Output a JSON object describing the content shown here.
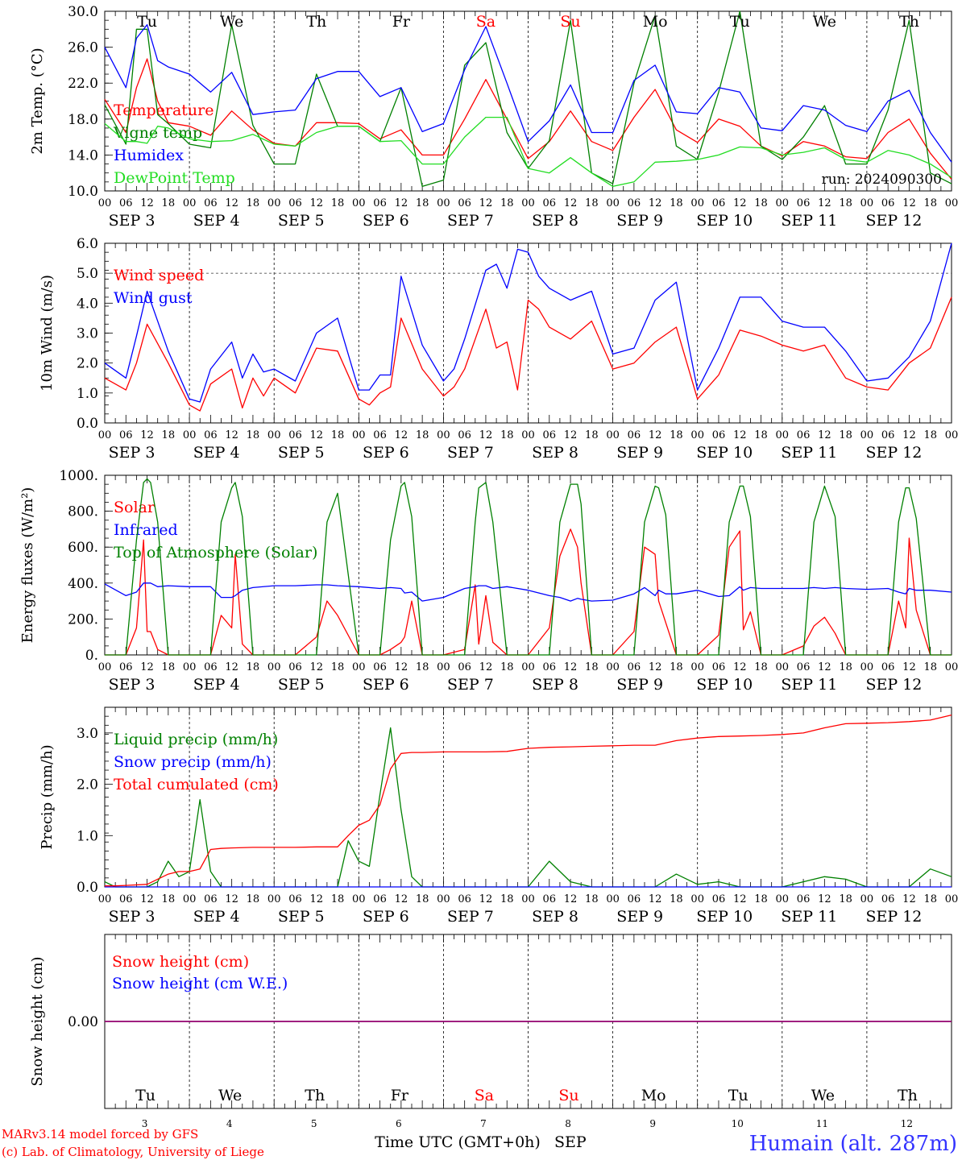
{
  "run_label": "run: 2024090300",
  "footer": {
    "model": "MARv3.14 model forced by GFS",
    "copyright": "(c) Lab. of Climatology, University of Liege",
    "time_axis": "Time UTC (GMT+0h)",
    "month": "SEP",
    "station": "Humain (alt. 287m)"
  },
  "days": [
    {
      "dow": "Tu",
      "date": "SEP  3",
      "num": "3",
      "weekend": false
    },
    {
      "dow": "We",
      "date": "SEP  4",
      "num": "4",
      "weekend": false
    },
    {
      "dow": "Th",
      "date": "SEP  5",
      "num": "5",
      "weekend": false
    },
    {
      "dow": "Fr",
      "date": "SEP  6",
      "num": "6",
      "weekend": false
    },
    {
      "dow": "Sa",
      "date": "SEP  7",
      "num": "7",
      "weekend": true
    },
    {
      "dow": "Su",
      "date": "SEP  8",
      "num": "8",
      "weekend": true
    },
    {
      "dow": "Mo",
      "date": "SEP  9",
      "num": "9",
      "weekend": false
    },
    {
      "dow": "Tu",
      "date": "SEP 10",
      "num": "10",
      "weekend": false
    },
    {
      "dow": "We",
      "date": "SEP 11",
      "num": "11",
      "weekend": false
    },
    {
      "dow": "Th",
      "date": "SEP 12",
      "num": "12",
      "weekend": false
    }
  ],
  "hour_ticks": [
    "00",
    "06",
    "12",
    "18"
  ],
  "colors": {
    "red": "#ff0000",
    "green": "#008000",
    "blue": "#0000ff",
    "lightgreen": "#22dd22",
    "purple": "#800080",
    "station": "#3333ff"
  },
  "chart_data": [
    {
      "type": "line",
      "ylabel": "2m Temp. (°C)",
      "ylim": [
        10,
        30
      ],
      "yticks": [
        "10.0",
        "14.0",
        "18.0",
        "22.0",
        "26.0",
        "30.0"
      ],
      "x_hours": [
        0,
        6,
        9,
        12,
        15,
        18,
        24,
        30,
        36,
        42,
        48,
        54,
        60,
        66,
        72,
        78,
        84,
        90,
        96,
        102,
        108,
        114,
        120,
        126,
        132,
        138,
        144,
        150,
        156,
        162,
        168,
        174,
        180,
        186,
        192,
        198,
        204,
        210,
        216,
        222,
        228,
        234,
        240
      ],
      "series": [
        {
          "name": "Temperature",
          "color": "red",
          "values": [
            20.2,
            16.5,
            21.5,
            24.7,
            20.0,
            17.6,
            17.2,
            16.2,
            18.9,
            16.8,
            15.3,
            15.0,
            17.6,
            17.6,
            17.5,
            15.8,
            16.8,
            14.0,
            14.0,
            18.0,
            22.4,
            18.0,
            13.6,
            15.5,
            18.9,
            15.5,
            14.5,
            18.2,
            21.3,
            16.8,
            15.4,
            18.0,
            17.2,
            15.0,
            13.9,
            15.5,
            15.0,
            13.8,
            13.6,
            16.5,
            18.0,
            14.2,
            11.3
          ]
        },
        {
          "name": "Vigne temp",
          "color": "green",
          "values": [
            19.6,
            15.2,
            28.0,
            28.0,
            18.5,
            17.5,
            15.2,
            14.8,
            28.5,
            17.3,
            13.0,
            13.0,
            23.0,
            17.2,
            17.2,
            15.5,
            21.5,
            10.5,
            11.2,
            24.0,
            26.5,
            16.5,
            12.5,
            15.6,
            29.0,
            12.0,
            10.8,
            22.0,
            29.5,
            15.0,
            13.5,
            21.0,
            30.0,
            15.0,
            13.5,
            16.0,
            19.5,
            13.0,
            13.0,
            19.0,
            29.0,
            12.0,
            10.8
          ]
        },
        {
          "name": "Humidex",
          "color": "blue",
          "values": [
            26.0,
            21.5,
            27.0,
            28.5,
            24.5,
            23.8,
            23.0,
            21.0,
            23.2,
            18.5,
            18.8,
            19.0,
            22.5,
            23.3,
            23.3,
            20.5,
            21.5,
            16.6,
            17.5,
            23.5,
            28.3,
            22.0,
            15.5,
            17.8,
            21.8,
            16.5,
            16.5,
            22.3,
            24.0,
            18.8,
            18.6,
            21.5,
            21.0,
            17.0,
            16.7,
            19.5,
            19.0,
            17.3,
            16.6,
            20.0,
            21.2,
            16.5,
            13.2
          ]
        },
        {
          "name": "DewPoint Temp",
          "color": "lightgreen",
          "values": [
            17.5,
            15.5,
            15.5,
            15.3,
            17.2,
            17.0,
            15.8,
            15.5,
            15.6,
            16.3,
            15.2,
            15.0,
            16.5,
            17.2,
            17.2,
            15.5,
            15.6,
            13.0,
            13.0,
            16.0,
            18.2,
            18.2,
            12.5,
            12.0,
            13.7,
            12.0,
            10.5,
            11.0,
            13.2,
            13.3,
            13.5,
            14.0,
            14.9,
            14.8,
            14.0,
            14.3,
            14.8,
            13.5,
            13.2,
            14.5,
            14.0,
            13.0,
            11.5
          ]
        }
      ]
    },
    {
      "type": "line",
      "ylabel": "10m Wind (m/s)",
      "ylim": [
        0,
        6
      ],
      "yticks": [
        "0.0",
        "1.0",
        "2.0",
        "3.0",
        "4.0",
        "5.0",
        "6.0"
      ],
      "ref_line": 5,
      "x_hours": [
        0,
        6,
        9,
        12,
        18,
        24,
        27,
        30,
        36,
        39,
        42,
        45,
        48,
        54,
        60,
        66,
        72,
        75,
        78,
        81,
        84,
        90,
        96,
        99,
        102,
        108,
        111,
        114,
        117,
        120,
        123,
        126,
        132,
        138,
        144,
        150,
        156,
        162,
        168,
        174,
        180,
        186,
        192,
        198,
        204,
        210,
        216,
        222,
        228,
        234,
        240
      ],
      "series": [
        {
          "name": "Wind speed",
          "color": "red",
          "values": [
            1.5,
            1.1,
            2.0,
            3.3,
            2.0,
            0.6,
            0.4,
            1.3,
            1.8,
            0.5,
            1.5,
            0.9,
            1.5,
            1.0,
            2.5,
            2.4,
            0.8,
            0.6,
            1.0,
            1.2,
            3.5,
            1.8,
            0.9,
            1.2,
            1.8,
            3.8,
            2.5,
            2.7,
            1.1,
            4.1,
            3.8,
            3.2,
            2.8,
            3.4,
            1.8,
            2.0,
            2.7,
            3.2,
            0.8,
            1.6,
            3.1,
            2.9,
            2.6,
            2.4,
            2.6,
            1.5,
            1.2,
            1.1,
            2.0,
            2.5,
            4.2
          ]
        },
        {
          "name": "Wind gust",
          "color": "blue",
          "values": [
            2.0,
            1.5,
            2.9,
            4.4,
            2.4,
            0.8,
            0.7,
            1.8,
            2.7,
            1.5,
            2.3,
            1.7,
            1.8,
            1.4,
            3.0,
            3.5,
            1.1,
            1.1,
            1.6,
            1.6,
            4.9,
            2.6,
            1.4,
            1.8,
            2.8,
            5.1,
            5.3,
            4.5,
            5.8,
            5.7,
            4.9,
            4.5,
            4.1,
            4.4,
            2.3,
            2.5,
            4.1,
            4.7,
            1.1,
            2.5,
            4.2,
            4.2,
            3.4,
            3.2,
            3.2,
            2.4,
            1.4,
            1.5,
            2.2,
            3.4,
            6.0
          ]
        }
      ]
    },
    {
      "type": "line",
      "ylabel": "Energy fluxes (W/m²)",
      "ylim": [
        0,
        1000
      ],
      "yticks": [
        "0.",
        "200.",
        "400.",
        "600.",
        "800.",
        "1000."
      ],
      "x_hours": [
        0,
        6,
        9,
        11,
        12,
        13,
        15,
        18,
        24,
        30,
        33,
        36,
        37,
        39,
        42,
        48,
        54,
        60,
        63,
        66,
        72,
        78,
        81,
        84,
        85,
        87,
        90,
        96,
        102,
        105,
        106,
        108,
        110,
        114,
        120,
        126,
        129,
        132,
        134,
        135,
        138,
        144,
        150,
        153,
        156,
        157,
        159,
        162,
        168,
        174,
        177,
        180,
        181,
        183,
        186,
        192,
        198,
        201,
        204,
        207,
        210,
        216,
        222,
        225,
        227,
        228,
        230,
        234,
        240
      ],
      "series": [
        {
          "name": "Solar",
          "color": "red",
          "values": [
            0,
            0,
            150,
            640,
            130,
            130,
            30,
            0,
            0,
            0,
            220,
            150,
            560,
            60,
            0,
            0,
            0,
            100,
            300,
            220,
            0,
            0,
            30,
            70,
            100,
            300,
            0,
            0,
            30,
            390,
            60,
            330,
            70,
            0,
            0,
            150,
            550,
            700,
            600,
            400,
            0,
            0,
            130,
            600,
            560,
            300,
            180,
            0,
            0,
            110,
            600,
            690,
            140,
            240,
            0,
            0,
            50,
            160,
            210,
            120,
            0,
            0,
            0,
            300,
            150,
            650,
            250,
            0,
            0
          ]
        },
        {
          "name": "Infrared",
          "color": "blue",
          "values": [
            395,
            330,
            350,
            400,
            400,
            400,
            380,
            385,
            380,
            380,
            320,
            320,
            330,
            360,
            375,
            385,
            385,
            390,
            390,
            385,
            380,
            370,
            375,
            370,
            345,
            350,
            300,
            320,
            370,
            380,
            385,
            385,
            370,
            380,
            360,
            330,
            320,
            300,
            315,
            310,
            300,
            305,
            340,
            375,
            330,
            360,
            340,
            340,
            360,
            325,
            330,
            380,
            360,
            375,
            370,
            370,
            370,
            375,
            370,
            375,
            370,
            365,
            370,
            350,
            340,
            370,
            360,
            360,
            350
          ]
        },
        {
          "name": "Top of Atmosphere (Solar)",
          "color": "green",
          "values": [
            0,
            0,
            640,
            960,
            980,
            960,
            740,
            0,
            0,
            0,
            740,
            930,
            960,
            770,
            0,
            0,
            0,
            0,
            740,
            900,
            0,
            0,
            640,
            940,
            960,
            770,
            0,
            0,
            0,
            740,
            930,
            960,
            740,
            0,
            0,
            0,
            740,
            950,
            950,
            840,
            0,
            0,
            0,
            740,
            940,
            930,
            780,
            0,
            0,
            0,
            740,
            940,
            940,
            770,
            0,
            0,
            0,
            740,
            940,
            770,
            0,
            0,
            0,
            740,
            930,
            930,
            760,
            0,
            0
          ]
        }
      ]
    },
    {
      "type": "line",
      "ylabel": "Precip (mm/h)",
      "ylim": [
        0,
        3.5
      ],
      "yticks": [
        "0.0",
        "1.0",
        "2.0",
        "3.0"
      ],
      "x_hours": [
        0,
        3,
        6,
        12,
        15,
        18,
        21,
        24,
        27,
        30,
        33,
        36,
        42,
        48,
        54,
        60,
        66,
        69,
        72,
        75,
        78,
        81,
        84,
        87,
        90,
        96,
        102,
        108,
        114,
        120,
        126,
        132,
        138,
        144,
        150,
        156,
        162,
        168,
        174,
        180,
        186,
        192,
        198,
        204,
        210,
        216,
        222,
        228,
        234,
        240
      ],
      "series": [
        {
          "name": "Liquid precip (mm/h)",
          "color": "green",
          "values": [
            0.1,
            0.0,
            0.0,
            0.0,
            0.1,
            0.5,
            0.2,
            0.3,
            1.7,
            0.3,
            0.0,
            0.0,
            0.0,
            0.0,
            0.0,
            0.0,
            0.0,
            0.9,
            0.5,
            0.4,
            1.8,
            3.1,
            1.5,
            0.2,
            0.0,
            0.0,
            0.0,
            0.0,
            0.0,
            0.0,
            0.5,
            0.1,
            0.0,
            0.0,
            0.0,
            0.0,
            0.25,
            0.05,
            0.1,
            0.0,
            0.0,
            0.0,
            0.1,
            0.2,
            0.15,
            0.0,
            0.0,
            0.0,
            0.35,
            0.2
          ]
        },
        {
          "name": "Snow precip (mm/h)",
          "color": "blue",
          "values": [
            0.0,
            0.0,
            0.0,
            0.0,
            0.0,
            0.0,
            0.0,
            0.0,
            0.0,
            0.0,
            0.0,
            0.0,
            0.0,
            0.0,
            0.0,
            0.0,
            0.0,
            0.0,
            0.0,
            0.0,
            0.0,
            0.0,
            0.0,
            0.0,
            0.0,
            0.0,
            0.0,
            0.0,
            0.0,
            0.0,
            0.0,
            0.0,
            0.0,
            0.0,
            0.0,
            0.0,
            0.0,
            0.0,
            0.0,
            0.0,
            0.0,
            0.0,
            0.0,
            0.0,
            0.0,
            0.0,
            0.0,
            0.0,
            0.0,
            0.0
          ]
        },
        {
          "name": "Total cumulated (cm)",
          "color": "red",
          "values": [
            0.02,
            0.02,
            0.03,
            0.05,
            0.15,
            0.25,
            0.3,
            0.3,
            0.35,
            0.73,
            0.75,
            0.76,
            0.77,
            0.77,
            0.77,
            0.78,
            0.78,
            1.0,
            1.2,
            1.3,
            1.6,
            2.3,
            2.6,
            2.62,
            2.62,
            2.63,
            2.63,
            2.63,
            2.64,
            2.7,
            2.72,
            2.73,
            2.74,
            2.75,
            2.76,
            2.76,
            2.85,
            2.9,
            2.93,
            2.94,
            2.95,
            2.97,
            3.0,
            3.1,
            3.18,
            3.19,
            3.2,
            3.22,
            3.25,
            3.35
          ]
        }
      ]
    },
    {
      "type": "line",
      "ylabel": "Snow height (cm)",
      "ylim": [
        -1,
        1
      ],
      "yticks": [
        "0.00"
      ],
      "x_hours": [
        0,
        240
      ],
      "series": [
        {
          "name": "Snow height (cm)",
          "color": "red",
          "values": [
            0,
            0
          ]
        },
        {
          "name": "Snow height (cm W.E.)",
          "color": "blue",
          "values": [
            0,
            0
          ]
        }
      ]
    }
  ]
}
